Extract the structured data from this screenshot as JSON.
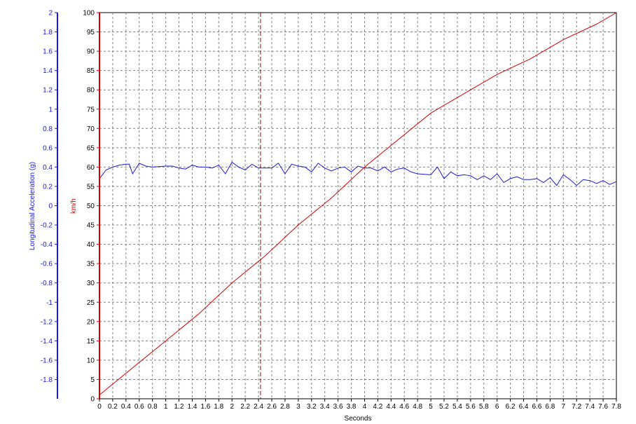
{
  "chart_data": {
    "type": "line",
    "xlabel": "Seconds",
    "xlim": [
      0,
      7.8
    ],
    "x_ticks": [
      "0",
      "0.2",
      "0.4",
      "0.6",
      "0.8",
      "1",
      "1.2",
      "1.4",
      "1.6",
      "1.8",
      "2",
      "2.2",
      "2.4",
      "2.6",
      "2.8",
      "3",
      "3.2",
      "3.4",
      "3.6",
      "3.8",
      "4",
      "4.2",
      "4.4",
      "4.6",
      "4.8",
      "5",
      "5.2",
      "5.4",
      "5.6",
      "5.8",
      "6",
      "6.2",
      "6.4",
      "6.6",
      "6.8",
      "7",
      "7.2",
      "7.4",
      "7.6",
      "7.8"
    ],
    "grid": true,
    "cursor_x": 2.43,
    "axes": {
      "speed": {
        "label": "km/h",
        "ylim": [
          0,
          100
        ],
        "color": "#d40000",
        "ticks": [
          "0",
          "5",
          "10",
          "15",
          "20",
          "25",
          "30",
          "35",
          "40",
          "45",
          "50",
          "55",
          "60",
          "65",
          "70",
          "75",
          "80",
          "85",
          "90",
          "95",
          "100"
        ]
      },
      "accel": {
        "label": "Longitudinal Acceleration (g)",
        "ylim": [
          -2,
          2
        ],
        "color": "#1a1adc",
        "ticks": [
          "2",
          "1.8",
          "1.6",
          "1.4",
          "1.2",
          "1",
          "0.8",
          "0.6",
          "0.4",
          "0.2",
          "0",
          "-0.2",
          "-0.4",
          "-0.6",
          "-0.8",
          "-1",
          "-1.2",
          "-1.4",
          "-1.6",
          "-1.8"
        ]
      }
    },
    "series": [
      {
        "axis": "speed",
        "color": "#d40000",
        "points": [
          [
            0,
            1
          ],
          [
            0.5,
            8
          ],
          [
            1,
            15
          ],
          [
            1.5,
            22
          ],
          [
            2,
            30
          ],
          [
            2.5,
            37
          ],
          [
            3,
            45
          ],
          [
            3.5,
            52
          ],
          [
            4,
            60
          ],
          [
            4.5,
            67
          ],
          [
            5,
            74
          ],
          [
            5.5,
            79
          ],
          [
            6,
            84
          ],
          [
            6.5,
            88
          ],
          [
            7,
            93
          ],
          [
            7.5,
            97
          ],
          [
            7.8,
            100
          ]
        ]
      },
      {
        "axis": "accel",
        "color": "#1a1adc",
        "points": [
          [
            0,
            0.28
          ],
          [
            0.1,
            0.37
          ],
          [
            0.2,
            0.4
          ],
          [
            0.3,
            0.42
          ],
          [
            0.4,
            0.43
          ],
          [
            0.45,
            0.43
          ],
          [
            0.5,
            0.33
          ],
          [
            0.6,
            0.44
          ],
          [
            0.7,
            0.41
          ],
          [
            0.8,
            0.4
          ],
          [
            1,
            0.41
          ],
          [
            1.1,
            0.41
          ],
          [
            1.2,
            0.39
          ],
          [
            1.3,
            0.38
          ],
          [
            1.4,
            0.42
          ],
          [
            1.5,
            0.4
          ],
          [
            1.6,
            0.4
          ],
          [
            1.7,
            0.39
          ],
          [
            1.8,
            0.42
          ],
          [
            1.9,
            0.33
          ],
          [
            2,
            0.45
          ],
          [
            2.1,
            0.4
          ],
          [
            2.2,
            0.37
          ],
          [
            2.3,
            0.43
          ],
          [
            2.4,
            0.39
          ],
          [
            2.5,
            0.39
          ],
          [
            2.6,
            0.39
          ],
          [
            2.7,
            0.44
          ],
          [
            2.8,
            0.33
          ],
          [
            2.9,
            0.43
          ],
          [
            3,
            0.41
          ],
          [
            3.1,
            0.4
          ],
          [
            3.2,
            0.35
          ],
          [
            3.3,
            0.44
          ],
          [
            3.4,
            0.39
          ],
          [
            3.5,
            0.36
          ],
          [
            3.6,
            0.39
          ],
          [
            3.7,
            0.4
          ],
          [
            3.8,
            0.35
          ],
          [
            3.9,
            0.41
          ],
          [
            4,
            0.39
          ],
          [
            4.1,
            0.39
          ],
          [
            4.2,
            0.36
          ],
          [
            4.3,
            0.4
          ],
          [
            4.4,
            0.35
          ],
          [
            4.5,
            0.38
          ],
          [
            4.6,
            0.39
          ],
          [
            4.7,
            0.35
          ],
          [
            4.8,
            0.33
          ],
          [
            5,
            0.32
          ],
          [
            5.1,
            0.4
          ],
          [
            5.2,
            0.28
          ],
          [
            5.3,
            0.35
          ],
          [
            5.4,
            0.31
          ],
          [
            5.5,
            0.32
          ],
          [
            5.6,
            0.31
          ],
          [
            5.7,
            0.27
          ],
          [
            5.8,
            0.31
          ],
          [
            5.9,
            0.27
          ],
          [
            6,
            0.33
          ],
          [
            6.1,
            0.24
          ],
          [
            6.2,
            0.28
          ],
          [
            6.3,
            0.3
          ],
          [
            6.4,
            0.27
          ],
          [
            6.5,
            0.27
          ],
          [
            6.6,
            0.28
          ],
          [
            6.7,
            0.24
          ],
          [
            6.8,
            0.29
          ],
          [
            6.9,
            0.21
          ],
          [
            7,
            0.32
          ],
          [
            7.1,
            0.27
          ],
          [
            7.2,
            0.21
          ],
          [
            7.3,
            0.27
          ],
          [
            7.4,
            0.26
          ],
          [
            7.5,
            0.23
          ],
          [
            7.6,
            0.26
          ],
          [
            7.7,
            0.22
          ],
          [
            7.8,
            0.25
          ]
        ]
      }
    ]
  }
}
